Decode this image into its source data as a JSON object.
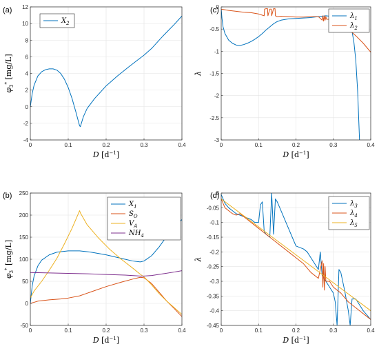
{
  "chart_data": [
    {
      "panel": "(a)",
      "type": "line",
      "xlabel": "D [d^-1]",
      "ylabel": "phi3* [mg/L]",
      "xlim": [
        0,
        0.4
      ],
      "ylim": [
        -4,
        12
      ],
      "xticks": [
        0,
        0.1,
        0.2,
        0.3,
        0.4
      ],
      "yticks": [
        -4,
        -2,
        0,
        2,
        4,
        6,
        8,
        10,
        12
      ],
      "grid": true,
      "legend": "top-left",
      "series": [
        {
          "name": "X2",
          "color": "#0072BD",
          "x": [
            0,
            0.005,
            0.01,
            0.02,
            0.03,
            0.04,
            0.05,
            0.06,
            0.07,
            0.08,
            0.09,
            0.1,
            0.11,
            0.12,
            0.13,
            0.132,
            0.14,
            0.15,
            0.17,
            0.2,
            0.23,
            0.26,
            0.28,
            0.3,
            0.32,
            0.35,
            0.38,
            0.4
          ],
          "y": [
            0,
            1.6,
            2.6,
            3.7,
            4.2,
            4.45,
            4.55,
            4.55,
            4.4,
            4.0,
            3.3,
            2.3,
            1.0,
            -0.6,
            -2.3,
            -2.4,
            -1.2,
            -0.2,
            1.0,
            2.5,
            3.7,
            4.8,
            5.5,
            6.2,
            7.0,
            8.5,
            9.9,
            10.9
          ]
        }
      ]
    },
    {
      "panel": "(b)",
      "type": "line",
      "xlabel": "D [d^-1]",
      "ylabel": "phi3* [mg/L]",
      "xlim": [
        0,
        0.4
      ],
      "ylim": [
        -50,
        250
      ],
      "xticks": [
        0,
        0.1,
        0.2,
        0.3,
        0.4
      ],
      "yticks": [
        -50,
        0,
        50,
        100,
        150,
        200,
        250
      ],
      "grid": true,
      "legend": "top-right",
      "series": [
        {
          "name": "X1",
          "color": "#0072BD",
          "x": [
            0,
            0.005,
            0.01,
            0.02,
            0.03,
            0.05,
            0.07,
            0.1,
            0.13,
            0.16,
            0.2,
            0.24,
            0.27,
            0.29,
            0.3,
            0.32,
            0.34,
            0.36,
            0.38,
            0.4
          ],
          "y": [
            0,
            40,
            62,
            85,
            98,
            110,
            116,
            119,
            119,
            116,
            110,
            102,
            96,
            94,
            96,
            108,
            128,
            152,
            172,
            190
          ]
        },
        {
          "name": "SO",
          "color": "#D95319",
          "x": [
            0,
            0.02,
            0.05,
            0.08,
            0.1,
            0.13,
            0.16,
            0.2,
            0.24,
            0.27,
            0.29,
            0.3,
            0.32,
            0.34,
            0.36,
            0.38,
            0.4
          ],
          "y": [
            0,
            5,
            8,
            10,
            12,
            17,
            26,
            38,
            48,
            55,
            59,
            58,
            45,
            25,
            5,
            -12,
            -30
          ]
        },
        {
          "name": "VA",
          "color": "#EDB120",
          "x": [
            0,
            0.01,
            0.03,
            0.05,
            0.07,
            0.09,
            0.11,
            0.12,
            0.13,
            0.132,
            0.15,
            0.18,
            0.21,
            0.24,
            0.27,
            0.29,
            0.3,
            0.32,
            0.34,
            0.36,
            0.38,
            0.4
          ],
          "y": [
            12,
            28,
            50,
            75,
            102,
            135,
            170,
            190,
            210,
            205,
            178,
            148,
            122,
            100,
            80,
            66,
            60,
            42,
            22,
            5,
            -10,
            -25
          ]
        },
        {
          "name": "NH4",
          "color": "#7E2F8E",
          "x": [
            0,
            0.05,
            0.1,
            0.15,
            0.2,
            0.25,
            0.29,
            0.3,
            0.32,
            0.35,
            0.38,
            0.4
          ],
          "y": [
            70,
            69,
            68,
            67,
            65.5,
            64,
            62,
            62,
            63,
            67,
            71,
            74
          ]
        }
      ]
    },
    {
      "panel": "(c)",
      "type": "line",
      "xlabel": "D [d^-1]",
      "ylabel": "λ",
      "xlim": [
        0,
        0.4
      ],
      "ylim": [
        -3,
        0
      ],
      "xticks": [
        0,
        0.1,
        0.2,
        0.3,
        0.4
      ],
      "yticks": [
        -3,
        -2.5,
        -2,
        -1.5,
        -1,
        -0.5,
        0
      ],
      "grid": true,
      "legend": "top-right",
      "series": [
        {
          "name": "λ1",
          "color": "#0072BD",
          "x": [
            0,
            0.002,
            0.005,
            0.01,
            0.02,
            0.03,
            0.04,
            0.05,
            0.06,
            0.07,
            0.08,
            0.09,
            0.1,
            0.11,
            0.12,
            0.13,
            0.14,
            0.15,
            0.16,
            0.18,
            0.2,
            0.22,
            0.24,
            0.26,
            0.28,
            0.3,
            0.305,
            0.31,
            0.312,
            0.32,
            0.33,
            0.34,
            0.35,
            0.355,
            0.36,
            0.365,
            0.37
          ],
          "y": [
            -0.05,
            -0.25,
            -0.45,
            -0.6,
            -0.75,
            -0.82,
            -0.86,
            -0.87,
            -0.85,
            -0.82,
            -0.78,
            -0.73,
            -0.67,
            -0.6,
            -0.52,
            -0.45,
            -0.38,
            -0.33,
            -0.3,
            -0.27,
            -0.26,
            -0.25,
            -0.24,
            -0.22,
            -0.2,
            -0.22,
            -0.3,
            -0.45,
            -0.22,
            -0.23,
            -0.26,
            -0.35,
            -0.55,
            -0.8,
            -1.2,
            -1.9,
            -3.0
          ]
        },
        {
          "name": "λ2",
          "color": "#D95319",
          "x": [
            0,
            0.02,
            0.04,
            0.06,
            0.08,
            0.1,
            0.115,
            0.116,
            0.12,
            0.124,
            0.125,
            0.13,
            0.134,
            0.135,
            0.14,
            0.144,
            0.145,
            0.15,
            0.16,
            0.18,
            0.2,
            0.22,
            0.24,
            0.26,
            0.27,
            0.272,
            0.274,
            0.276,
            0.278,
            0.28,
            0.282,
            0.29,
            0.3,
            0.31,
            0.32,
            0.34,
            0.36,
            0.38,
            0.4
          ],
          "y": [
            -0.05,
            -0.08,
            -0.1,
            -0.12,
            -0.13,
            -0.16,
            -0.2,
            -0.05,
            -0.04,
            -0.04,
            -0.2,
            -0.05,
            -0.05,
            -0.2,
            -0.04,
            -0.04,
            -0.2,
            -0.22,
            -0.21,
            -0.22,
            -0.23,
            -0.23,
            -0.22,
            -0.22,
            -0.3,
            -0.2,
            -0.32,
            -0.2,
            -0.3,
            -0.22,
            -0.28,
            -0.28,
            -0.3,
            -0.3,
            -0.37,
            -0.5,
            -0.65,
            -0.82,
            -1.02
          ]
        }
      ]
    },
    {
      "panel": "(d)",
      "type": "line",
      "xlabel": "D [d^-1]",
      "ylabel": "λ",
      "xlim": [
        0,
        0.4
      ],
      "ylim": [
        -0.45,
        0
      ],
      "xticks": [
        0,
        0.1,
        0.2,
        0.3,
        0.4
      ],
      "yticks": [
        -0.45,
        -0.4,
        -0.35,
        -0.3,
        -0.25,
        -0.2,
        -0.15,
        -0.1,
        -0.05,
        0
      ],
      "grid": true,
      "legend": "top-right",
      "series": [
        {
          "name": "λ3",
          "color": "#0072BD",
          "x": [
            0,
            0.005,
            0.01,
            0.02,
            0.03,
            0.04,
            0.05,
            0.06,
            0.07,
            0.08,
            0.09,
            0.1,
            0.105,
            0.11,
            0.115,
            0.12,
            0.13,
            0.135,
            0.14,
            0.145,
            0.15,
            0.16,
            0.17,
            0.18,
            0.19,
            0.2,
            0.21,
            0.22,
            0.23,
            0.24,
            0.25,
            0.26,
            0.265,
            0.27,
            0.28,
            0.29,
            0.3,
            0.305,
            0.31,
            0.315,
            0.32,
            0.33,
            0.34,
            0.345,
            0.35,
            0.36,
            0.37,
            0.38,
            0.39,
            0.4
          ],
          "y": [
            -0.005,
            -0.02,
            -0.035,
            -0.05,
            -0.06,
            -0.07,
            -0.075,
            -0.08,
            -0.085,
            -0.09,
            -0.1,
            -0.1,
            -0.04,
            -0.03,
            -0.13,
            -0.14,
            -0.15,
            0.0,
            -0.14,
            -0.02,
            -0.03,
            -0.06,
            -0.09,
            -0.12,
            -0.15,
            -0.18,
            -0.185,
            -0.19,
            -0.2,
            -0.22,
            -0.24,
            -0.26,
            -0.2,
            -0.28,
            -0.3,
            -0.32,
            -0.34,
            -0.37,
            -0.45,
            -0.26,
            -0.27,
            -0.33,
            -0.4,
            -0.45,
            -0.36,
            -0.36,
            -0.38,
            -0.4,
            -0.415,
            -0.43
          ]
        },
        {
          "name": "λ4",
          "color": "#D95319",
          "x": [
            0,
            0.01,
            0.02,
            0.03,
            0.04,
            0.05,
            0.07,
            0.09,
            0.1,
            0.12,
            0.14,
            0.16,
            0.18,
            0.2,
            0.22,
            0.24,
            0.26,
            0.27,
            0.272,
            0.274,
            0.276,
            0.278,
            0.28,
            0.29,
            0.3,
            0.31,
            0.32,
            0.34,
            0.36,
            0.38,
            0.4
          ],
          "y": [
            -0.02,
            -0.05,
            -0.06,
            -0.07,
            -0.075,
            -0.07,
            -0.09,
            -0.11,
            -0.12,
            -0.14,
            -0.16,
            -0.18,
            -0.2,
            -0.22,
            -0.24,
            -0.27,
            -0.29,
            -0.23,
            -0.32,
            -0.24,
            -0.33,
            -0.25,
            -0.3,
            -0.3,
            -0.32,
            -0.33,
            -0.34,
            -0.37,
            -0.39,
            -0.41,
            -0.43
          ]
        },
        {
          "name": "λ5",
          "color": "#EDB120",
          "x": [
            0,
            0.1,
            0.2,
            0.3,
            0.4
          ],
          "y": [
            -0.02,
            -0.115,
            -0.21,
            -0.305,
            -0.4
          ]
        }
      ]
    }
  ]
}
